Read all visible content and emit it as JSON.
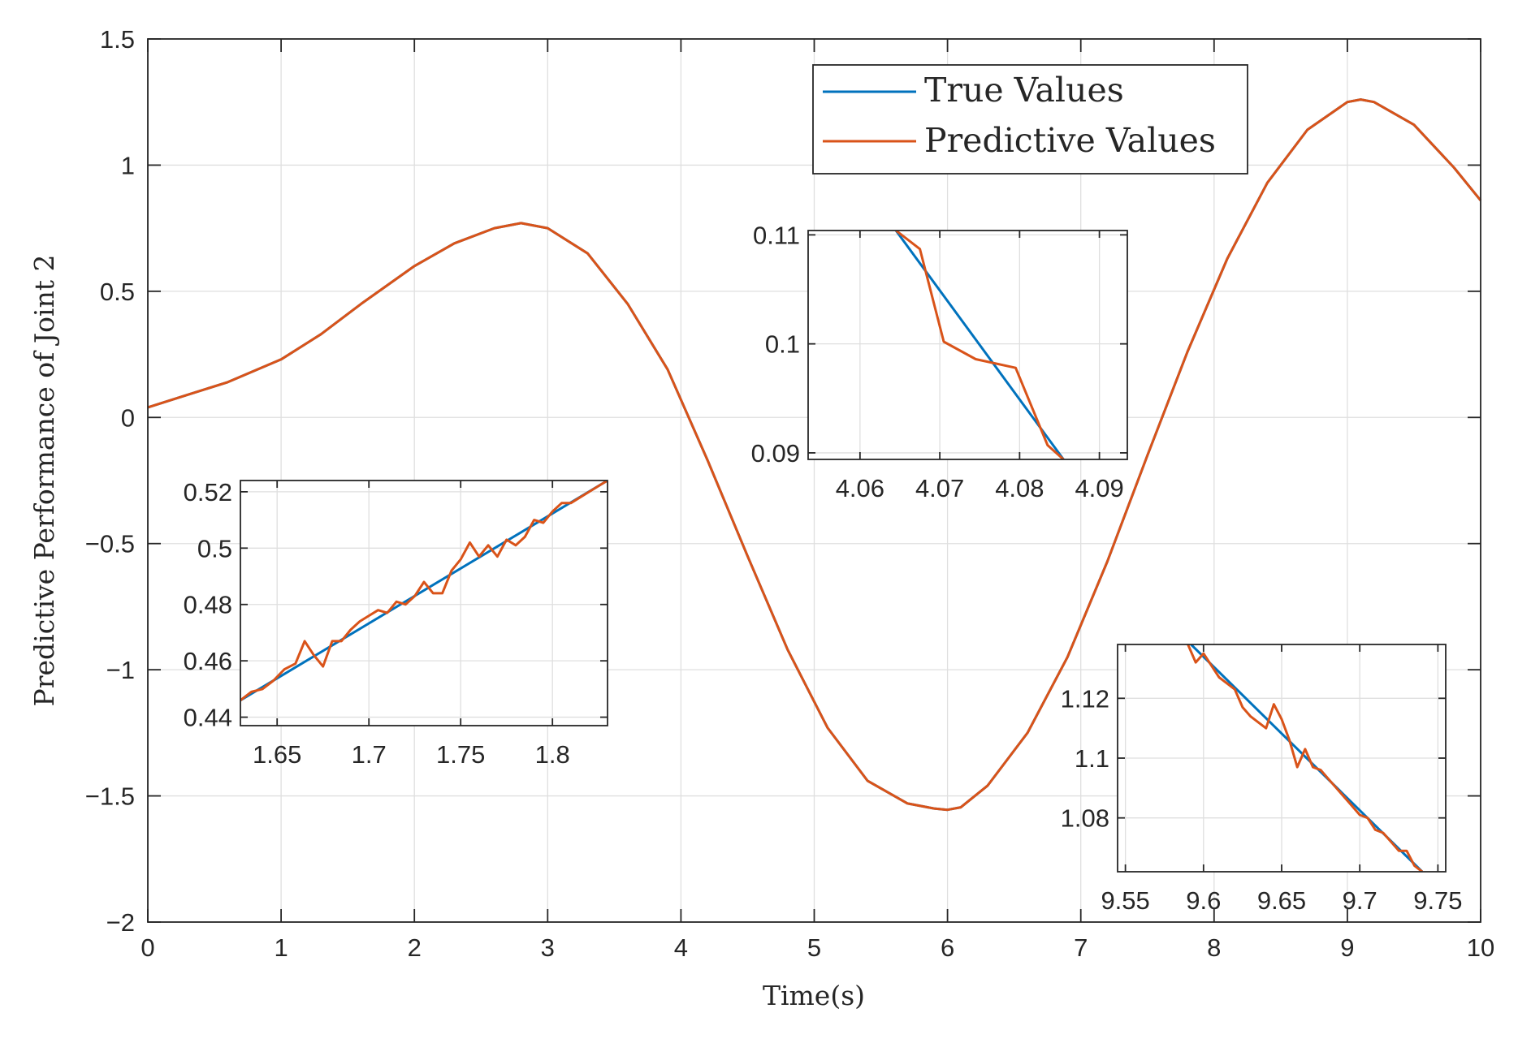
{
  "chart_data": {
    "type": "line",
    "xlabel": "Time(s)",
    "ylabel": "Predictive Performance of Joint 2",
    "xlim": [
      0,
      10
    ],
    "ylim": [
      -2,
      1.5
    ],
    "x_ticks": [
      0,
      1,
      2,
      3,
      4,
      5,
      6,
      7,
      8,
      9,
      10
    ],
    "x_tick_labels": [
      "0",
      "1",
      "2",
      "3",
      "4",
      "5",
      "6",
      "7",
      "8",
      "9",
      "10"
    ],
    "y_ticks": [
      1.5,
      1,
      0.5,
      0,
      -0.5,
      -1,
      -1.5,
      -2
    ],
    "y_tick_labels": [
      "1.5",
      "1",
      "0.5",
      "0",
      "−0.5",
      "−1",
      "−1.5",
      "−2"
    ],
    "grid": true,
    "legend": {
      "placement": "top-right",
      "entries": [
        "True Values",
        "Predictive Values"
      ]
    },
    "series": [
      {
        "name": "True Values",
        "color": "#0072BD",
        "x": [
          0,
          0.3,
          0.6,
          1.0,
          1.3,
          1.6,
          2.0,
          2.3,
          2.6,
          2.8,
          3.0,
          3.3,
          3.6,
          3.9,
          4.2,
          4.5,
          4.8,
          5.1,
          5.4,
          5.7,
          5.9,
          6.0,
          6.1,
          6.3,
          6.6,
          6.9,
          7.2,
          7.5,
          7.8,
          8.1,
          8.4,
          8.7,
          9.0,
          9.1,
          9.2,
          9.5,
          9.8,
          10.0
        ],
        "y": [
          0.04,
          0.09,
          0.14,
          0.23,
          0.33,
          0.45,
          0.6,
          0.69,
          0.75,
          0.77,
          0.75,
          0.65,
          0.45,
          0.19,
          -0.17,
          -0.55,
          -0.92,
          -1.23,
          -1.44,
          -1.53,
          -1.55,
          -1.555,
          -1.545,
          -1.46,
          -1.25,
          -0.95,
          -0.57,
          -0.15,
          0.26,
          0.63,
          0.93,
          1.14,
          1.25,
          1.26,
          1.25,
          1.16,
          0.99,
          0.86
        ]
      },
      {
        "name": "Predictive Values",
        "color": "#D95319",
        "x": [
          0,
          0.3,
          0.6,
          1.0,
          1.3,
          1.6,
          2.0,
          2.3,
          2.6,
          2.8,
          3.0,
          3.3,
          3.6,
          3.9,
          4.2,
          4.5,
          4.8,
          5.1,
          5.4,
          5.7,
          5.9,
          6.0,
          6.1,
          6.3,
          6.6,
          6.9,
          7.2,
          7.5,
          7.8,
          8.1,
          8.4,
          8.7,
          9.0,
          9.1,
          9.2,
          9.5,
          9.8,
          10.0
        ],
        "y": [
          0.04,
          0.09,
          0.14,
          0.23,
          0.33,
          0.45,
          0.6,
          0.69,
          0.75,
          0.77,
          0.75,
          0.65,
          0.45,
          0.19,
          -0.17,
          -0.55,
          -0.92,
          -1.23,
          -1.44,
          -1.53,
          -1.55,
          -1.555,
          -1.545,
          -1.46,
          -1.25,
          -0.95,
          -0.57,
          -0.15,
          0.26,
          0.63,
          0.93,
          1.14,
          1.25,
          1.26,
          1.25,
          1.16,
          0.99,
          0.86
        ]
      }
    ],
    "insets": [
      {
        "name": "inset-1-7",
        "xlim": [
          1.63,
          1.83
        ],
        "ylim": [
          0.437,
          0.524
        ],
        "x_ticks": [
          1.65,
          1.7,
          1.75,
          1.8
        ],
        "x_tick_labels": [
          "1.65",
          "1.7",
          "1.75",
          "1.8"
        ],
        "y_ticks": [
          0.52,
          0.5,
          0.48,
          0.46,
          0.44
        ],
        "y_tick_labels": [
          "0.52",
          "0.5",
          "0.48",
          "0.46",
          "0.44"
        ],
        "true_x": [
          1.63,
          1.83
        ],
        "true_y": [
          0.446,
          0.524
        ],
        "pred_x": [
          1.63,
          1.636,
          1.642,
          1.648,
          1.654,
          1.66,
          1.665,
          1.67,
          1.675,
          1.68,
          1.685,
          1.69,
          1.695,
          1.7,
          1.705,
          1.71,
          1.715,
          1.72,
          1.725,
          1.73,
          1.735,
          1.74,
          1.745,
          1.75,
          1.755,
          1.76,
          1.765,
          1.77,
          1.775,
          1.78,
          1.785,
          1.79,
          1.795,
          1.8,
          1.805,
          1.81,
          1.815,
          1.82,
          1.825,
          1.83
        ],
        "pred_y": [
          0.446,
          0.449,
          0.45,
          0.453,
          0.457,
          0.459,
          0.467,
          0.462,
          0.458,
          0.467,
          0.467,
          0.471,
          0.474,
          0.476,
          0.478,
          0.477,
          0.481,
          0.48,
          0.483,
          0.488,
          0.484,
          0.484,
          0.492,
          0.496,
          0.502,
          0.497,
          0.501,
          0.497,
          0.503,
          0.501,
          0.504,
          0.51,
          0.509,
          0.513,
          0.516,
          0.516,
          0.518,
          0.52,
          0.522,
          0.524
        ]
      },
      {
        "name": "inset-4-07",
        "xlim": [
          4.0535,
          4.0935
        ],
        "ylim": [
          0.0894,
          0.1104
        ],
        "x_ticks": [
          4.06,
          4.07,
          4.08,
          4.09
        ],
        "x_tick_labels": [
          "4.06",
          "4.07",
          "4.08",
          "4.09"
        ],
        "y_ticks": [
          0.11,
          0.1,
          0.09
        ],
        "y_tick_labels": [
          "0.11",
          "0.1",
          "0.09"
        ],
        "true_x": [
          4.0645,
          4.0855
        ],
        "true_y": [
          0.1104,
          0.0894
        ],
        "pred_x": [
          4.0645,
          4.0675,
          4.0705,
          4.0745,
          4.0795,
          4.0835,
          4.0855
        ],
        "pred_y": [
          0.1104,
          0.1087,
          0.1002,
          0.0986,
          0.0978,
          0.0907,
          0.0894
        ]
      },
      {
        "name": "inset-9-65",
        "xlim": [
          9.545,
          9.755
        ],
        "ylim": [
          1.062,
          1.138
        ],
        "x_ticks": [
          9.55,
          9.6,
          9.65,
          9.7,
          9.75
        ],
        "x_tick_labels": [
          "9.55",
          "9.6",
          "9.65",
          "9.7",
          "9.75"
        ],
        "y_ticks": [
          1.12,
          1.1,
          1.08
        ],
        "y_tick_labels": [
          "1.12",
          "1.1",
          "1.08"
        ],
        "true_x": [
          9.592,
          9.74
        ],
        "true_y": [
          1.138,
          1.062
        ],
        "pred_x": [
          9.59,
          9.595,
          9.6,
          9.605,
          9.61,
          9.615,
          9.62,
          9.625,
          9.63,
          9.635,
          9.64,
          9.645,
          9.65,
          9.655,
          9.66,
          9.665,
          9.67,
          9.675,
          9.68,
          9.685,
          9.69,
          9.695,
          9.7,
          9.705,
          9.71,
          9.715,
          9.72,
          9.725,
          9.73,
          9.735,
          9.74
        ],
        "pred_y": [
          1.138,
          1.132,
          1.135,
          1.131,
          1.127,
          1.125,
          1.123,
          1.117,
          1.114,
          1.112,
          1.11,
          1.118,
          1.113,
          1.106,
          1.097,
          1.103,
          1.097,
          1.096,
          1.093,
          1.09,
          1.087,
          1.084,
          1.081,
          1.08,
          1.076,
          1.075,
          1.072,
          1.069,
          1.069,
          1.064,
          1.062
        ]
      }
    ]
  }
}
